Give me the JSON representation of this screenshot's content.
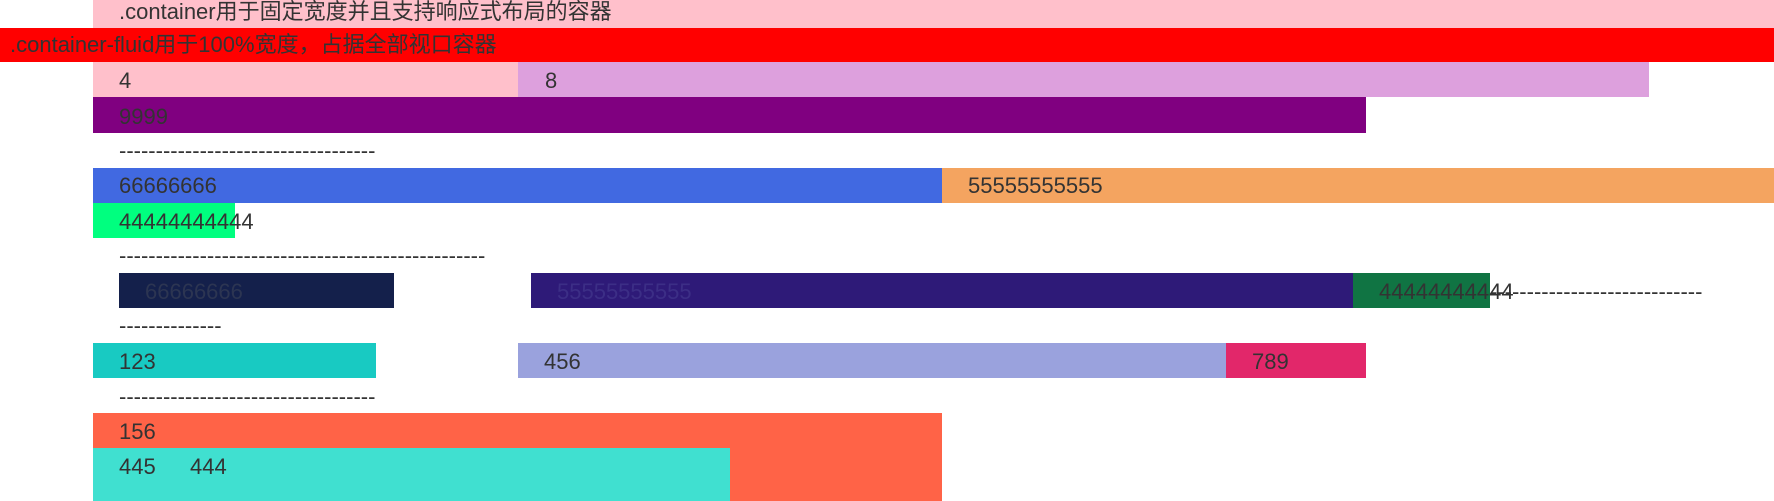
{
  "rows": {
    "container_text": ".container用于固定宽度并且支持响应式布局的容器",
    "fluid_text": ".container-fluid用于100%宽度，占据全部视口容器",
    "cell_4": "4",
    "cell_8": "8",
    "cell_9999": "9999",
    "divider_1": "-----------------------------------",
    "cell_66666666_a": "66666666",
    "cell_55555555555_a": "55555555555",
    "cell_44444444444_a": "44444444444",
    "divider_2": "--------------------------------------------------",
    "cell_66666666_b": "66666666",
    "cell_55555555555_b": "55555555555",
    "cell_44444444444_b": "44444444444",
    "divider_3": "-----------------------------",
    "divider_4": "--------------",
    "cell_123": "123",
    "cell_456": "456",
    "cell_789": "789",
    "divider_5": "-----------------------------------",
    "cell_156": "156",
    "cell_445": "445",
    "cell_444": "444"
  },
  "colors": {
    "pink": "#ffc0cb",
    "red": "#ff0000",
    "plum": "#dda0dd",
    "purple": "#800080",
    "royalblue": "#4169e1",
    "sandybrown": "#f4a460",
    "springgreen": "#00ff7f",
    "navy_dark": "#14204b",
    "indigo_dark": "#2e1a78",
    "green_dark": "#107443",
    "turquoise_a": "#18cac2",
    "periwinkle": "#9aa2dd",
    "crimson_pink": "#e2276a",
    "tomato": "#ff6347",
    "turquoise": "#40e0d0"
  }
}
